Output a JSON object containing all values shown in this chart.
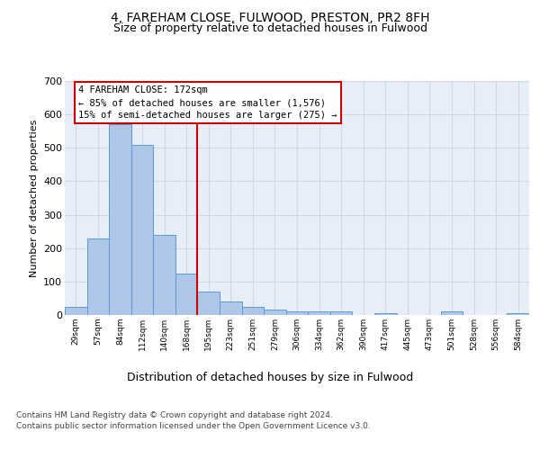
{
  "title": "4, FAREHAM CLOSE, FULWOOD, PRESTON, PR2 8FH",
  "subtitle": "Size of property relative to detached houses in Fulwood",
  "xlabel": "Distribution of detached houses by size in Fulwood",
  "ylabel": "Number of detached properties",
  "bin_labels": [
    "29sqm",
    "57sqm",
    "84sqm",
    "112sqm",
    "140sqm",
    "168sqm",
    "195sqm",
    "223sqm",
    "251sqm",
    "279sqm",
    "306sqm",
    "334sqm",
    "362sqm",
    "390sqm",
    "417sqm",
    "445sqm",
    "473sqm",
    "501sqm",
    "528sqm",
    "556sqm",
    "584sqm"
  ],
  "bar_values": [
    25,
    230,
    570,
    510,
    240,
    125,
    70,
    40,
    25,
    15,
    10,
    10,
    10,
    0,
    5,
    0,
    0,
    10,
    0,
    0,
    5
  ],
  "bar_color": "#aec6e8",
  "bar_edge_color": "#5b9bd5",
  "vline_color": "#cc0000",
  "vline_pos": 5.5,
  "annotation_text": "4 FAREHAM CLOSE: 172sqm\n← 85% of detached houses are smaller (1,576)\n15% of semi-detached houses are larger (275) →",
  "annotation_box_color": "#ffffff",
  "annotation_box_edge_color": "#cc0000",
  "ylim": [
    0,
    700
  ],
  "yticks": [
    0,
    100,
    200,
    300,
    400,
    500,
    600,
    700
  ],
  "grid_color": "#d0d8e8",
  "bg_color": "#e8eef8",
  "footer": "Contains HM Land Registry data © Crown copyright and database right 2024.\nContains public sector information licensed under the Open Government Licence v3.0."
}
